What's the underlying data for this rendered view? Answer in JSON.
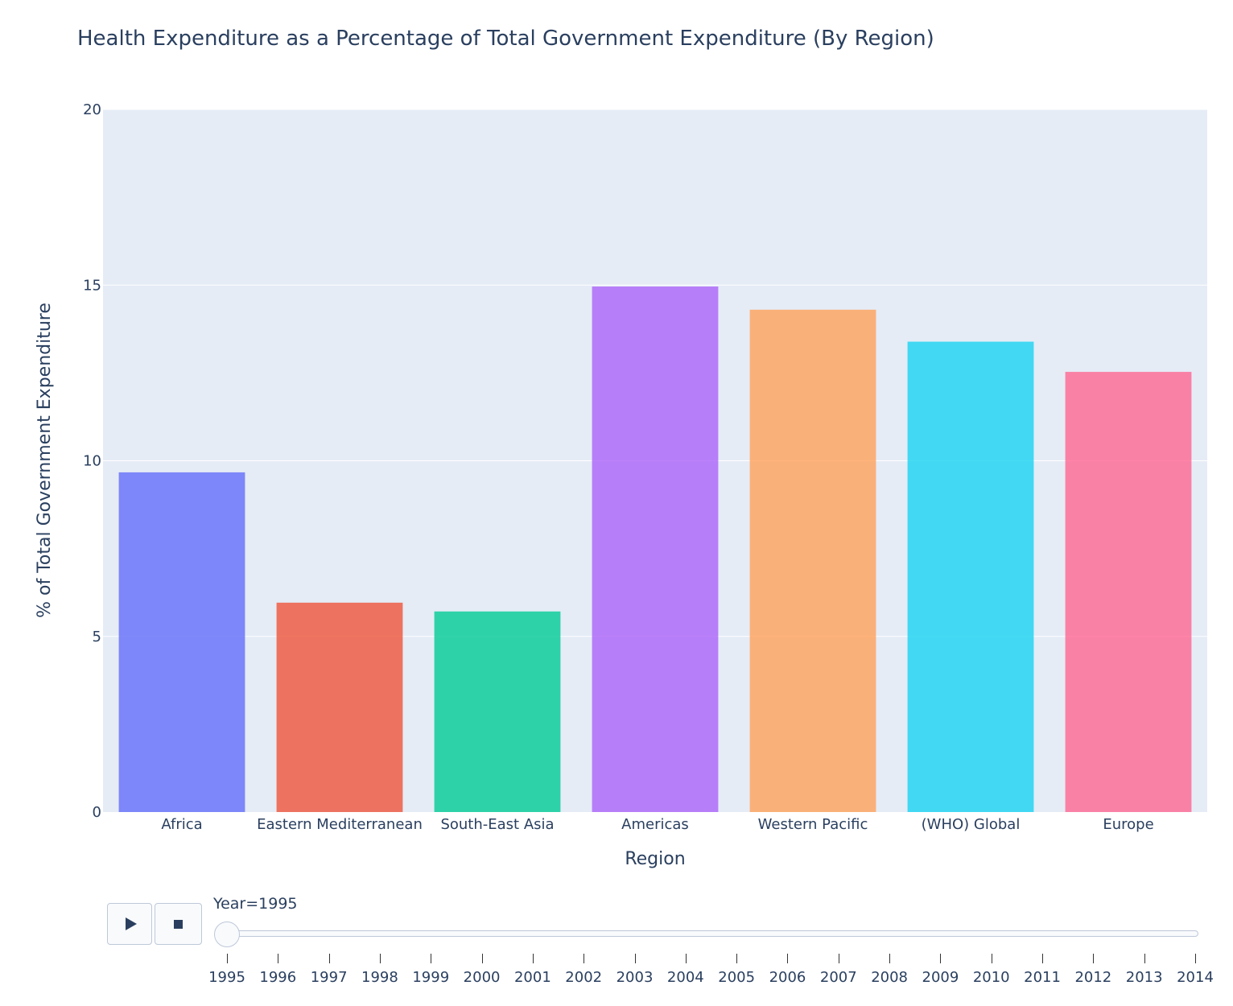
{
  "chart_data": {
    "type": "bar",
    "title": "Health Expenditure as a Percentage of Total Government Expenditure (By Region)",
    "xlabel": "Region",
    "ylabel": "% of Total Government Expenditure",
    "ylim": [
      0,
      20
    ],
    "yticks": [
      "0",
      "5",
      "10",
      "15",
      "20"
    ],
    "grid": true,
    "categories": [
      "Africa",
      "Eastern Mediterranean",
      "South-East Asia",
      "Americas",
      "Western Pacific",
      "(WHO) Global",
      "Europe"
    ],
    "values": [
      9.67,
      5.96,
      5.71,
      14.96,
      14.3,
      13.39,
      12.53
    ],
    "colors": [
      "#636efa",
      "#EF553B",
      "#00cc96",
      "#ab63fa",
      "#FFA15A",
      "#19d3f3",
      "#FF6692"
    ],
    "bar_opacity": 0.8
  },
  "slider": {
    "label_prefix": "Year=",
    "current": "1995",
    "years": [
      "1995",
      "1996",
      "1997",
      "1998",
      "1999",
      "2000",
      "2001",
      "2002",
      "2003",
      "2004",
      "2005",
      "2006",
      "2007",
      "2008",
      "2009",
      "2010",
      "2011",
      "2012",
      "2013",
      "2014"
    ]
  },
  "controls": {
    "play_icon": "play-icon",
    "stop_icon": "stop-icon"
  }
}
